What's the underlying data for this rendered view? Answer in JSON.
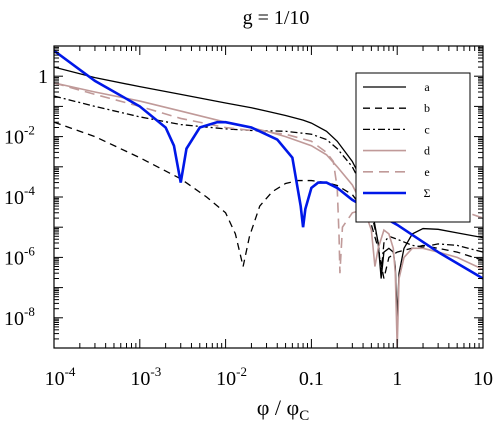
{
  "chart_data": {
    "type": "line",
    "title": "g = 1/10",
    "xlabel": "φ / φ",
    "xlabel_sub": "C",
    "ylabel": "",
    "xscale": "log",
    "yscale": "log",
    "xlim": [
      0.0001,
      10
    ],
    "ylim": [
      1e-09,
      10
    ],
    "x_ticks": [
      {
        "value": 0.0001,
        "base": "10",
        "exp": "-4"
      },
      {
        "value": 0.001,
        "base": "10",
        "exp": "-3"
      },
      {
        "value": 0.01,
        "base": "10",
        "exp": "-2"
      },
      {
        "value": 0.1,
        "base": "0.1",
        "exp": ""
      },
      {
        "value": 1,
        "base": "1",
        "exp": ""
      },
      {
        "value": 10,
        "base": "10",
        "exp": ""
      }
    ],
    "y_ticks": [
      {
        "value": 1,
        "base": "1",
        "exp": ""
      },
      {
        "value": 0.01,
        "base": "10",
        "exp": "-2"
      },
      {
        "value": 0.0001,
        "base": "10",
        "exp": "-4"
      },
      {
        "value": 1e-06,
        "base": "10",
        "exp": "-6"
      },
      {
        "value": 1e-08,
        "base": "10",
        "exp": "-8"
      }
    ],
    "grid": false,
    "legend_position": "top-right",
    "series": [
      {
        "name": "a",
        "color": "#000000",
        "dash": "solid",
        "width": 1.3,
        "points": [
          [
            0.0001,
            2.0
          ],
          [
            0.0003,
            0.9
          ],
          [
            0.001,
            0.45
          ],
          [
            0.003,
            0.25
          ],
          [
            0.01,
            0.13
          ],
          [
            0.02,
            0.09
          ],
          [
            0.03,
            0.07
          ],
          [
            0.05,
            0.05
          ],
          [
            0.08,
            0.035
          ],
          [
            0.1,
            0.028
          ],
          [
            0.15,
            0.015
          ],
          [
            0.2,
            0.007
          ],
          [
            0.3,
            0.0015
          ],
          [
            0.4,
            0.0003
          ],
          [
            0.5,
            5e-05
          ],
          [
            0.6,
            3e-06
          ],
          [
            0.65,
            2e-07
          ],
          [
            0.7,
            1.5e-06
          ],
          [
            0.8,
            2e-06
          ],
          [
            0.9,
            1.5e-06
          ],
          [
            0.95,
            5e-07
          ],
          [
            1.0,
            1e-08
          ],
          [
            1.05,
            3e-07
          ],
          [
            1.2,
            2e-06
          ],
          [
            1.5,
            6e-06
          ],
          [
            2,
            9e-06
          ],
          [
            3,
            8.5e-06
          ],
          [
            5,
            6.5e-06
          ],
          [
            10,
            4.5e-06
          ]
        ]
      },
      {
        "name": "b",
        "color": "#000000",
        "dash": "7,5",
        "width": 1.3,
        "points": [
          [
            0.0001,
            0.03
          ],
          [
            0.0003,
            0.01
          ],
          [
            0.001,
            0.002
          ],
          [
            0.003,
            0.0004
          ],
          [
            0.006,
            0.0001
          ],
          [
            0.01,
            3e-05
          ],
          [
            0.013,
            6e-06
          ],
          [
            0.016,
            5e-07
          ],
          [
            0.019,
            5e-06
          ],
          [
            0.025,
            5e-05
          ],
          [
            0.035,
            0.00015
          ],
          [
            0.05,
            0.00028
          ],
          [
            0.07,
            0.00035
          ],
          [
            0.1,
            0.00035
          ],
          [
            0.15,
            0.0003
          ],
          [
            0.2,
            0.00024
          ],
          [
            0.3,
            0.00012
          ],
          [
            0.4,
            4e-05
          ],
          [
            0.5,
            1.2e-05
          ],
          [
            0.6,
            2e-06
          ],
          [
            0.7,
            2e-07
          ],
          [
            0.8,
            1e-06
          ],
          [
            1,
            1.5e-06
          ],
          [
            2,
            2.5e-06
          ],
          [
            5,
            1.5e-06
          ],
          [
            10,
            8e-07
          ]
        ]
      },
      {
        "name": "c",
        "color": "#000000",
        "dash": "7,3,2,3",
        "width": 1.3,
        "points": [
          [
            0.0001,
            0.22
          ],
          [
            0.0003,
            0.1
          ],
          [
            0.001,
            0.045
          ],
          [
            0.003,
            0.025
          ],
          [
            0.01,
            0.018
          ],
          [
            0.02,
            0.016
          ],
          [
            0.05,
            0.015
          ],
          [
            0.1,
            0.012
          ],
          [
            0.15,
            0.008
          ],
          [
            0.2,
            0.004
          ],
          [
            0.3,
            0.001
          ],
          [
            0.4,
            0.0002
          ],
          [
            0.5,
            3e-05
          ],
          [
            0.6,
            3e-06
          ],
          [
            0.65,
            3e-07
          ],
          [
            0.7,
            3e-06
          ],
          [
            0.8,
            5e-06
          ],
          [
            1,
            4e-06
          ],
          [
            1.5,
            2.5e-06
          ],
          [
            2,
            2.2e-06
          ],
          [
            3,
            2.8e-06
          ],
          [
            5,
            2.5e-06
          ],
          [
            10,
            1.5e-06
          ]
        ]
      },
      {
        "name": "d",
        "color": "#c09a99",
        "dash": "solid",
        "width": 1.6,
        "points": [
          [
            0.0001,
            0.6
          ],
          [
            0.0003,
            0.3
          ],
          [
            0.001,
            0.15
          ],
          [
            0.003,
            0.07
          ],
          [
            0.01,
            0.03
          ],
          [
            0.03,
            0.015
          ],
          [
            0.05,
            0.01
          ],
          [
            0.1,
            0.005
          ],
          [
            0.15,
            0.0025
          ],
          [
            0.2,
            0.001
          ],
          [
            0.3,
            0.00025
          ],
          [
            0.4,
            5e-05
          ],
          [
            0.5,
            8e-06
          ],
          [
            0.55,
            5e-07
          ],
          [
            0.6,
            2e-06
          ],
          [
            0.7,
            8e-06
          ],
          [
            0.8,
            6e-06
          ],
          [
            0.9,
            2e-06
          ],
          [
            0.95,
            3e-07
          ],
          [
            1.0,
            1e-09
          ],
          [
            1.05,
            2e-07
          ],
          [
            1.2,
            1e-06
          ],
          [
            1.5,
            2e-06
          ],
          [
            2,
            2e-06
          ],
          [
            3,
            1.5e-06
          ],
          [
            5,
            1e-06
          ],
          [
            10,
            4e-07
          ]
        ]
      },
      {
        "name": "e",
        "color": "#c09a99",
        "dash": "10,6",
        "width": 1.6,
        "points": [
          [
            0.0001,
            0.6
          ],
          [
            0.0003,
            0.25
          ],
          [
            0.001,
            0.1
          ],
          [
            0.003,
            0.04
          ],
          [
            0.01,
            0.02
          ],
          [
            0.03,
            0.014
          ],
          [
            0.05,
            0.012
          ],
          [
            0.1,
            0.007
          ],
          [
            0.15,
            0.003
          ],
          [
            0.18,
            0.0015
          ],
          [
            0.2,
            0.0002
          ],
          [
            0.21,
            5e-06
          ],
          [
            0.215,
            3e-07
          ],
          [
            0.23,
            1e-05
          ],
          [
            0.3,
            3e-05
          ],
          [
            0.5,
            4.5e-05
          ],
          [
            1,
            4e-05
          ],
          [
            2,
            4.5e-05
          ],
          [
            5,
            4e-05
          ],
          [
            10,
            2e-05
          ]
        ]
      },
      {
        "name": "Σ",
        "color": "#0018e8",
        "dash": "solid",
        "width": 2.6,
        "points": [
          [
            0.0001,
            7.0
          ],
          [
            0.0003,
            0.7
          ],
          [
            0.001,
            0.1
          ],
          [
            0.002,
            0.02
          ],
          [
            0.0025,
            0.005
          ],
          [
            0.003,
            0.0003
          ],
          [
            0.0035,
            0.004
          ],
          [
            0.005,
            0.02
          ],
          [
            0.008,
            0.03
          ],
          [
            0.01,
            0.03
          ],
          [
            0.02,
            0.02
          ],
          [
            0.04,
            0.008
          ],
          [
            0.06,
            0.002
          ],
          [
            0.075,
            5e-05
          ],
          [
            0.08,
            1e-05
          ],
          [
            0.085,
            4e-05
          ],
          [
            0.1,
            0.0002
          ],
          [
            0.12,
            0.0003
          ],
          [
            0.15,
            0.0003
          ],
          [
            0.2,
            0.0002
          ],
          [
            0.3,
            8e-05
          ],
          [
            1,
            1.2e-05
          ],
          [
            3,
            1.5e-06
          ],
          [
            10,
            2e-07
          ]
        ]
      }
    ]
  }
}
